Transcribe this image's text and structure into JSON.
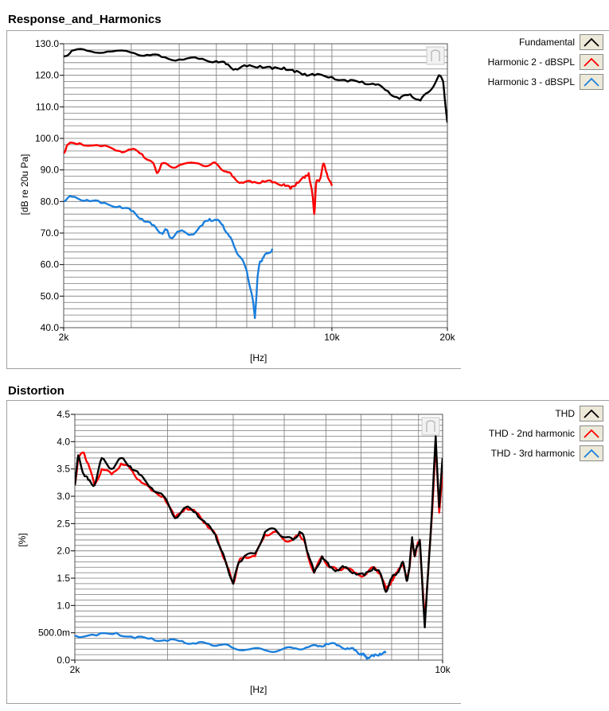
{
  "chart_data": [
    {
      "title": "Response_and_Harmonics",
      "type": "line",
      "x_scale": "log",
      "xlim": [
        2000,
        20000
      ],
      "ylim": [
        40,
        130
      ],
      "xlabel": "[Hz]",
      "ylabel": "[dB re 20u Pa]",
      "x_tick_labels": [
        {
          "value": 2000,
          "label": "2k"
        },
        {
          "value": 10000,
          "label": "10k"
        },
        {
          "value": 20000,
          "label": "20k"
        }
      ],
      "y_tick_labels": [
        {
          "value": 40,
          "label": "40.0"
        },
        {
          "value": 50,
          "label": "50.0"
        },
        {
          "value": 60,
          "label": "60.0"
        },
        {
          "value": 70,
          "label": "70.0"
        },
        {
          "value": 80,
          "label": "80.0"
        },
        {
          "value": 90,
          "label": "90.0"
        },
        {
          "value": 100,
          "label": "100.0"
        },
        {
          "value": 110,
          "label": "110.0"
        },
        {
          "value": 120,
          "label": "120.0"
        },
        {
          "value": 130,
          "label": "130.0"
        }
      ],
      "y_minor_step": 2,
      "grid": true,
      "legend_position": "right",
      "series": [
        {
          "name": "Fundamental",
          "color": "#000000",
          "x": [
            2000,
            2100,
            2300,
            2600,
            3000,
            3300,
            3600,
            4000,
            4500,
            5000,
            5300,
            5600,
            6000,
            6500,
            7000,
            7500,
            8000,
            8500,
            9000,
            10000,
            11000,
            12000,
            13000,
            14000,
            15000,
            16000,
            17000,
            18000,
            19000,
            19500,
            20000
          ],
          "y": [
            126,
            127.8,
            127.8,
            127.5,
            127.2,
            126.5,
            125.8,
            125,
            125.2,
            124.5,
            123.5,
            122,
            122.8,
            123,
            122,
            122.5,
            121,
            120.5,
            120,
            119.5,
            118,
            118,
            117,
            115,
            112.5,
            114,
            112,
            115,
            120,
            118,
            105
          ]
        },
        {
          "name": "Harmonic 2 - dBSPL",
          "color": "#ff0000",
          "x": [
            2000,
            2050,
            2200,
            2500,
            2800,
            3000,
            3200,
            3400,
            3500,
            3600,
            3800,
            4000,
            4500,
            4800,
            5000,
            5300,
            5500,
            5800,
            6200,
            6600,
            7000,
            7500,
            7800,
            8100,
            8500,
            8700,
            8900,
            9000,
            9100,
            9300,
            9500,
            9700,
            10000
          ],
          "y": [
            95.5,
            98,
            98.5,
            97.5,
            96,
            96.5,
            95,
            92.5,
            89,
            92,
            91,
            91.5,
            92,
            91.5,
            92,
            89.5,
            88,
            86,
            86,
            86.5,
            86,
            85.5,
            84,
            86,
            87.5,
            89,
            82,
            76,
            86,
            87,
            92,
            89,
            85
          ]
        },
        {
          "name": "Harmonic 3 - dBSPL",
          "color": "#1b7fdc",
          "x": [
            2000,
            2100,
            2300,
            2500,
            2800,
            3000,
            3200,
            3400,
            3600,
            3700,
            3800,
            4000,
            4300,
            4600,
            4800,
            5000,
            5200,
            5400,
            5600,
            5800,
            6000,
            6200,
            6300,
            6400,
            6500,
            6600,
            6800,
            7000
          ],
          "y": [
            80,
            81.5,
            80.5,
            79.5,
            78.5,
            77,
            74.5,
            72.5,
            70,
            71,
            68.5,
            70.5,
            69.5,
            72.5,
            74.5,
            74,
            72.5,
            69,
            65,
            62,
            58,
            50,
            43,
            56,
            61,
            62,
            63.5,
            65
          ]
        }
      ]
    },
    {
      "title": "Distortion",
      "type": "line",
      "x_scale": "log",
      "xlim": [
        2000,
        10000
      ],
      "ylim": [
        0,
        4.5
      ],
      "xlabel": "[Hz]",
      "ylabel": "[%]",
      "x_tick_labels": [
        {
          "value": 2000,
          "label": "2k"
        },
        {
          "value": 10000,
          "label": "10k"
        }
      ],
      "y_tick_labels": [
        {
          "value": 0,
          "label": "0.0"
        },
        {
          "value": 0.5,
          "label": "500.0m"
        },
        {
          "value": 1.0,
          "label": "1.0"
        },
        {
          "value": 1.5,
          "label": "1.5"
        },
        {
          "value": 2.0,
          "label": "2.0"
        },
        {
          "value": 2.5,
          "label": "2.5"
        },
        {
          "value": 3.0,
          "label": "3.0"
        },
        {
          "value": 3.5,
          "label": "3.5"
        },
        {
          "value": 4.0,
          "label": "4.0"
        },
        {
          "value": 4.5,
          "label": "4.5"
        }
      ],
      "y_minor_step": 0.1,
      "grid": true,
      "legend_position": "right",
      "series": [
        {
          "name": "THD - 2nd harmonic",
          "color": "#ff0000",
          "x": [
            2000,
            2030,
            2080,
            2120,
            2180,
            2250,
            2350,
            2450,
            2550,
            2650,
            2800,
            2950,
            3100,
            3250,
            3400,
            3550,
            3700,
            3800,
            3900,
            4000,
            4100,
            4200,
            4400,
            4600,
            4800,
            5000,
            5200,
            5350,
            5450,
            5550,
            5700,
            5900,
            6100,
            6300,
            6500,
            6800,
            7100,
            7400,
            7600,
            7800,
            8000,
            8200,
            8400,
            8550,
            8650,
            8750,
            8850,
            8950,
            9050,
            9150,
            9250,
            9400,
            9550,
            9700,
            9850,
            10000
          ],
          "y": [
            3.2,
            3.7,
            3.8,
            3.6,
            3.2,
            3.5,
            3.4,
            3.6,
            3.5,
            3.3,
            3.1,
            3.0,
            2.6,
            2.8,
            2.7,
            2.5,
            2.3,
            2.0,
            1.7,
            1.4,
            1.8,
            1.9,
            1.9,
            2.3,
            2.35,
            2.2,
            2.2,
            2.3,
            2.2,
            1.9,
            1.6,
            1.9,
            1.7,
            1.65,
            1.7,
            1.6,
            1.55,
            1.7,
            1.6,
            1.3,
            1.45,
            1.6,
            1.8,
            1.45,
            1.7,
            2.2,
            1.9,
            2.1,
            2.2,
            1.4,
            0.75,
            1.7,
            2.7,
            4.0,
            2.7,
            3.5
          ]
        },
        {
          "name": "THD - 3rd harmonic",
          "color": "#1b7fdc",
          "x": [
            2000,
            2200,
            2400,
            2600,
            2800,
            3000,
            3200,
            3400,
            3600,
            3800,
            4000,
            4300,
            4600,
            4900,
            5200,
            5500,
            5800,
            6000,
            6300,
            6600,
            6800,
            7000,
            7100,
            7200,
            7400,
            7600,
            7800
          ],
          "y": [
            0.45,
            0.45,
            0.5,
            0.4,
            0.4,
            0.35,
            0.35,
            0.3,
            0.3,
            0.28,
            0.22,
            0.2,
            0.18,
            0.18,
            0.22,
            0.23,
            0.25,
            0.3,
            0.27,
            0.22,
            0.18,
            0.12,
            0.08,
            0.05,
            0.07,
            0.12,
            0.13
          ]
        },
        {
          "name": "THD",
          "color": "#000000",
          "x": [
            2000,
            2030,
            2080,
            2120,
            2180,
            2250,
            2350,
            2450,
            2550,
            2650,
            2800,
            2950,
            3100,
            3250,
            3400,
            3550,
            3700,
            3800,
            3900,
            4000,
            4100,
            4200,
            4400,
            4600,
            4800,
            5000,
            5200,
            5350,
            5450,
            5550,
            5700,
            5900,
            6100,
            6300,
            6500,
            6800,
            7100,
            7400,
            7600,
            7800,
            8000,
            8200,
            8400,
            8550,
            8650,
            8750,
            8850,
            8950,
            9050,
            9150,
            9250,
            9400,
            9550,
            9700,
            9850,
            10000
          ],
          "y": [
            3.2,
            3.75,
            3.4,
            3.3,
            3.2,
            3.7,
            3.5,
            3.7,
            3.55,
            3.4,
            3.15,
            3.0,
            2.6,
            2.8,
            2.7,
            2.5,
            2.3,
            2.0,
            1.7,
            1.4,
            1.8,
            1.9,
            1.95,
            2.35,
            2.4,
            2.25,
            2.2,
            2.35,
            2.25,
            1.95,
            1.6,
            1.9,
            1.7,
            1.65,
            1.7,
            1.6,
            1.55,
            1.7,
            1.6,
            1.25,
            1.5,
            1.6,
            1.8,
            1.45,
            1.7,
            2.25,
            1.9,
            2.1,
            2.2,
            1.4,
            0.6,
            1.7,
            2.8,
            4.1,
            2.8,
            3.7
          ]
        }
      ]
    }
  ],
  "legends": [
    {
      "items": [
        {
          "label": "Fundamental",
          "color": "#000000"
        },
        {
          "label": "Harmonic 2 - dBSPL",
          "color": "#ff0000"
        },
        {
          "label": "Harmonic 3 - dBSPL",
          "color": "#1b7fdc"
        }
      ]
    },
    {
      "items": [
        {
          "label": "THD",
          "color": "#000000"
        },
        {
          "label": "THD - 2nd harmonic",
          "color": "#ff0000"
        },
        {
          "label": "THD - 3rd harmonic",
          "color": "#1b7fdc"
        }
      ]
    }
  ]
}
